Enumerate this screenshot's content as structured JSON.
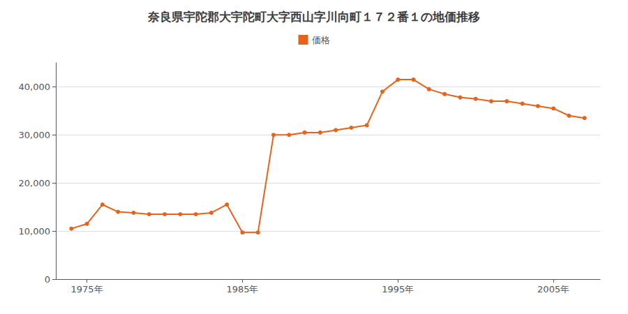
{
  "chart_data": {
    "type": "line",
    "title": "奈良県宇陀郡大宇陀町大字西山字川向町１７２番１の地価推移",
    "series": [
      {
        "name": "価格",
        "color": "#e8621a",
        "marker": "circle",
        "values": [
          10500,
          11500,
          15500,
          14000,
          13800,
          13500,
          13500,
          13500,
          13500,
          13800,
          15500,
          9700,
          9700,
          30000,
          30000,
          30500,
          30500,
          31000,
          31500,
          32000,
          39000,
          41500,
          41500,
          39500,
          38500,
          37800,
          37500,
          37000,
          37000,
          36500,
          36000,
          35500,
          34000,
          33500
        ]
      }
    ],
    "x": [
      1974,
      1975,
      1976,
      1977,
      1978,
      1979,
      1980,
      1981,
      1982,
      1983,
      1984,
      1985,
      1986,
      1987,
      1988,
      1989,
      1990,
      1991,
      1992,
      1993,
      1994,
      1995,
      1996,
      1997,
      1998,
      1999,
      2000,
      2001,
      2002,
      2003,
      2004,
      2005,
      2006,
      2007
    ],
    "xlim": [
      1973,
      2008
    ],
    "xticks": [
      {
        "value": 1975,
        "label": "1975年"
      },
      {
        "value": 1985,
        "label": "1985年"
      },
      {
        "value": 1995,
        "label": "1995年"
      },
      {
        "value": 2005,
        "label": "2005年"
      }
    ],
    "ylim": [
      0,
      45000
    ],
    "yticks": [
      0,
      {
        "value": 10000,
        "label": "10,000"
      },
      {
        "value": 20000,
        "label": "20,000"
      },
      {
        "value": 30000,
        "label": "30,000"
      },
      {
        "value": 40000,
        "label": "40,000"
      }
    ],
    "grid": true,
    "legend": "top"
  }
}
